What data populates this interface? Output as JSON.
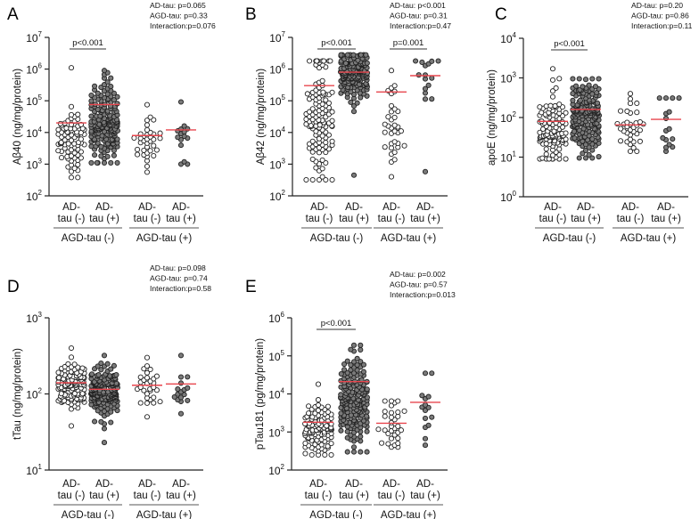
{
  "colors": {
    "mean_line": "#e8464e",
    "filled_point": "#7a7a7a",
    "open_point": "#ffffff",
    "outline": "#222222"
  },
  "chart_data": [
    {
      "type": "scatter",
      "panel": "A",
      "ylabel": "Aβ40 (ng/mg/protein)",
      "yscale": "log10",
      "ylim_exp": [
        2,
        7
      ],
      "stats": [
        "AD-tau: p=0.065",
        "AGD-tau: p=0.33",
        "Interaction:p=0.076"
      ],
      "categories": [
        [
          "AD-",
          "tau (-)"
        ],
        [
          "AD-",
          "tau (+)"
        ],
        [
          "AD-",
          "tau (-)"
        ],
        [
          "AD-",
          "tau (+)"
        ]
      ],
      "group_labels": [
        "AGD-tau (-)",
        "AGD-tau (+)"
      ],
      "brackets": [
        {
          "from": 0,
          "to": 1,
          "label": "p<0.001"
        }
      ],
      "groups": [
        {
          "n": 80,
          "log_median": 3.8,
          "log_sd": 0.5,
          "min": 380,
          "max": 1100000,
          "mean": 20000,
          "filled": false
        },
        {
          "n": 180,
          "log_median": 4.3,
          "log_sd": 0.6,
          "min": 1100,
          "max": 900000,
          "mean": 76000,
          "filled": true
        },
        {
          "n": 35,
          "log_median": 3.8,
          "log_sd": 0.4,
          "min": 560,
          "max": 75000,
          "mean": 8000,
          "filled": false
        },
        {
          "n": 15,
          "log_median": 3.8,
          "log_sd": 0.35,
          "min": 1000,
          "max": 92000,
          "mean": 12000,
          "filled": true
        }
      ]
    },
    {
      "type": "scatter",
      "panel": "B",
      "ylabel": "Aβ42 (ng/mg/protein)",
      "yscale": "log10",
      "ylim_exp": [
        2,
        7
      ],
      "stats": [
        "AD-tau: p<0.001",
        "AGD-tau: p=0.31",
        "Interaction:p=0.47"
      ],
      "categories": [
        [
          "AD-",
          "tau (-)"
        ],
        [
          "AD-",
          "tau (+)"
        ],
        [
          "AD-",
          "tau (-)"
        ],
        [
          "AD-",
          "tau (+)"
        ]
      ],
      "group_labels": [
        "AGD-tau (-)",
        "AGD-tau (+)"
      ],
      "brackets": [
        {
          "from": 0,
          "to": 1,
          "label": "p<0.001"
        },
        {
          "from": 2,
          "to": 3,
          "label": "p=0.001"
        }
      ],
      "groups": [
        {
          "n": 120,
          "log_median": 4.4,
          "log_sd": 1.0,
          "min": 320,
          "max": 1800000,
          "mean": 300000,
          "filled": false
        },
        {
          "n": 170,
          "log_median": 5.85,
          "log_sd": 0.35,
          "min": 450,
          "max": 2800000,
          "mean": 800000,
          "filled": true
        },
        {
          "n": 35,
          "log_median": 4.3,
          "log_sd": 0.8,
          "min": 400,
          "max": 900000,
          "mean": 190000,
          "filled": false
        },
        {
          "n": 16,
          "log_median": 5.75,
          "log_sd": 0.45,
          "min": 580,
          "max": 1800000,
          "mean": 620000,
          "filled": true
        }
      ]
    },
    {
      "type": "scatter",
      "panel": "C",
      "ylabel": "apoE (ng/mg/protein)",
      "yscale": "log10",
      "ylim_exp": [
        0,
        4
      ],
      "stats": [
        "AD-tau: p=0.20",
        "AGD-tau: p=0.86",
        "Interaction:p=0.11"
      ],
      "categories": [
        [
          "AD-",
          "tau (-)"
        ],
        [
          "AD-",
          "tau (+)"
        ],
        [
          "AD-",
          "tau (-)"
        ],
        [
          "AD-",
          "tau (+)"
        ]
      ],
      "group_labels": [
        "AGD-tau (-)",
        "AGD-tau (+)"
      ],
      "brackets": [
        {
          "from": 0,
          "to": 1,
          "label": "p<0.001"
        }
      ],
      "groups": [
        {
          "n": 110,
          "log_median": 1.6,
          "log_sd": 0.45,
          "min": 9,
          "max": 1700,
          "mean": 80,
          "filled": false
        },
        {
          "n": 180,
          "log_median": 2.1,
          "log_sd": 0.45,
          "min": 9.5,
          "max": 950,
          "mean": 160,
          "filled": true
        },
        {
          "n": 35,
          "log_median": 1.65,
          "log_sd": 0.35,
          "min": 14,
          "max": 400,
          "mean": 65,
          "filled": false
        },
        {
          "n": 16,
          "log_median": 1.7,
          "log_sd": 0.4,
          "min": 14,
          "max": 310,
          "mean": 90,
          "filled": true
        }
      ]
    },
    {
      "type": "scatter",
      "panel": "D",
      "ylabel": "tTau (ng/mg/protein)",
      "yscale": "log10",
      "ylim_exp": [
        1,
        3
      ],
      "stats": [
        "AD-tau: p=0.098",
        "AGD-tau: p=0.74",
        "Interaction:p=0.58"
      ],
      "categories": [
        [
          "AD-",
          "tau (-)"
        ],
        [
          "AD-",
          "tau (+)"
        ],
        [
          "AD-",
          "tau (-)"
        ],
        [
          "AD-",
          "tau (+)"
        ]
      ],
      "group_labels": [
        "AGD-tau (-)",
        "AGD-tau (+)"
      ],
      "brackets": [],
      "groups": [
        {
          "n": 120,
          "log_median": 2.1,
          "log_sd": 0.15,
          "min": 38,
          "max": 400,
          "mean": 140,
          "filled": false
        },
        {
          "n": 180,
          "log_median": 2.05,
          "log_sd": 0.15,
          "min": 23,
          "max": 320,
          "mean": 115,
          "filled": true
        },
        {
          "n": 30,
          "log_median": 2.1,
          "log_sd": 0.12,
          "min": 50,
          "max": 300,
          "mean": 130,
          "filled": false
        },
        {
          "n": 16,
          "log_median": 2.1,
          "log_sd": 0.15,
          "min": 55,
          "max": 320,
          "mean": 135,
          "filled": true
        }
      ]
    },
    {
      "type": "scatter",
      "panel": "E",
      "ylabel": "pTau181 (pg/mg/protein)",
      "yscale": "log10",
      "ylim_exp": [
        2,
        6
      ],
      "stats": [
        "AD-tau: p=0.002",
        "AGD-tau: p=0.57",
        "Interaction:p=0.013"
      ],
      "categories": [
        [
          "AD-",
          "tau (-)"
        ],
        [
          "AD-",
          "tau (+)"
        ],
        [
          "AD-",
          "tau (-)"
        ],
        [
          "AD-",
          "tau (+)"
        ]
      ],
      "group_labels": [
        "AGD-tau (-)",
        "AGD-tau (+)"
      ],
      "brackets": [
        {
          "from": 0,
          "to": 1,
          "label": "p<0.001"
        }
      ],
      "groups": [
        {
          "n": 110,
          "log_median": 3.1,
          "log_sd": 0.35,
          "min": 250,
          "max": 18000,
          "mean": 1800,
          "filled": false
        },
        {
          "n": 180,
          "log_median": 3.8,
          "log_sd": 0.6,
          "min": 300,
          "max": 190000,
          "mean": 21000,
          "filled": true
        },
        {
          "n": 32,
          "log_median": 3.2,
          "log_sd": 0.3,
          "min": 400,
          "max": 6500,
          "mean": 1700,
          "filled": false
        },
        {
          "n": 15,
          "log_median": 3.6,
          "log_sd": 0.45,
          "min": 450,
          "max": 35000,
          "mean": 6000,
          "filled": true
        }
      ]
    }
  ]
}
